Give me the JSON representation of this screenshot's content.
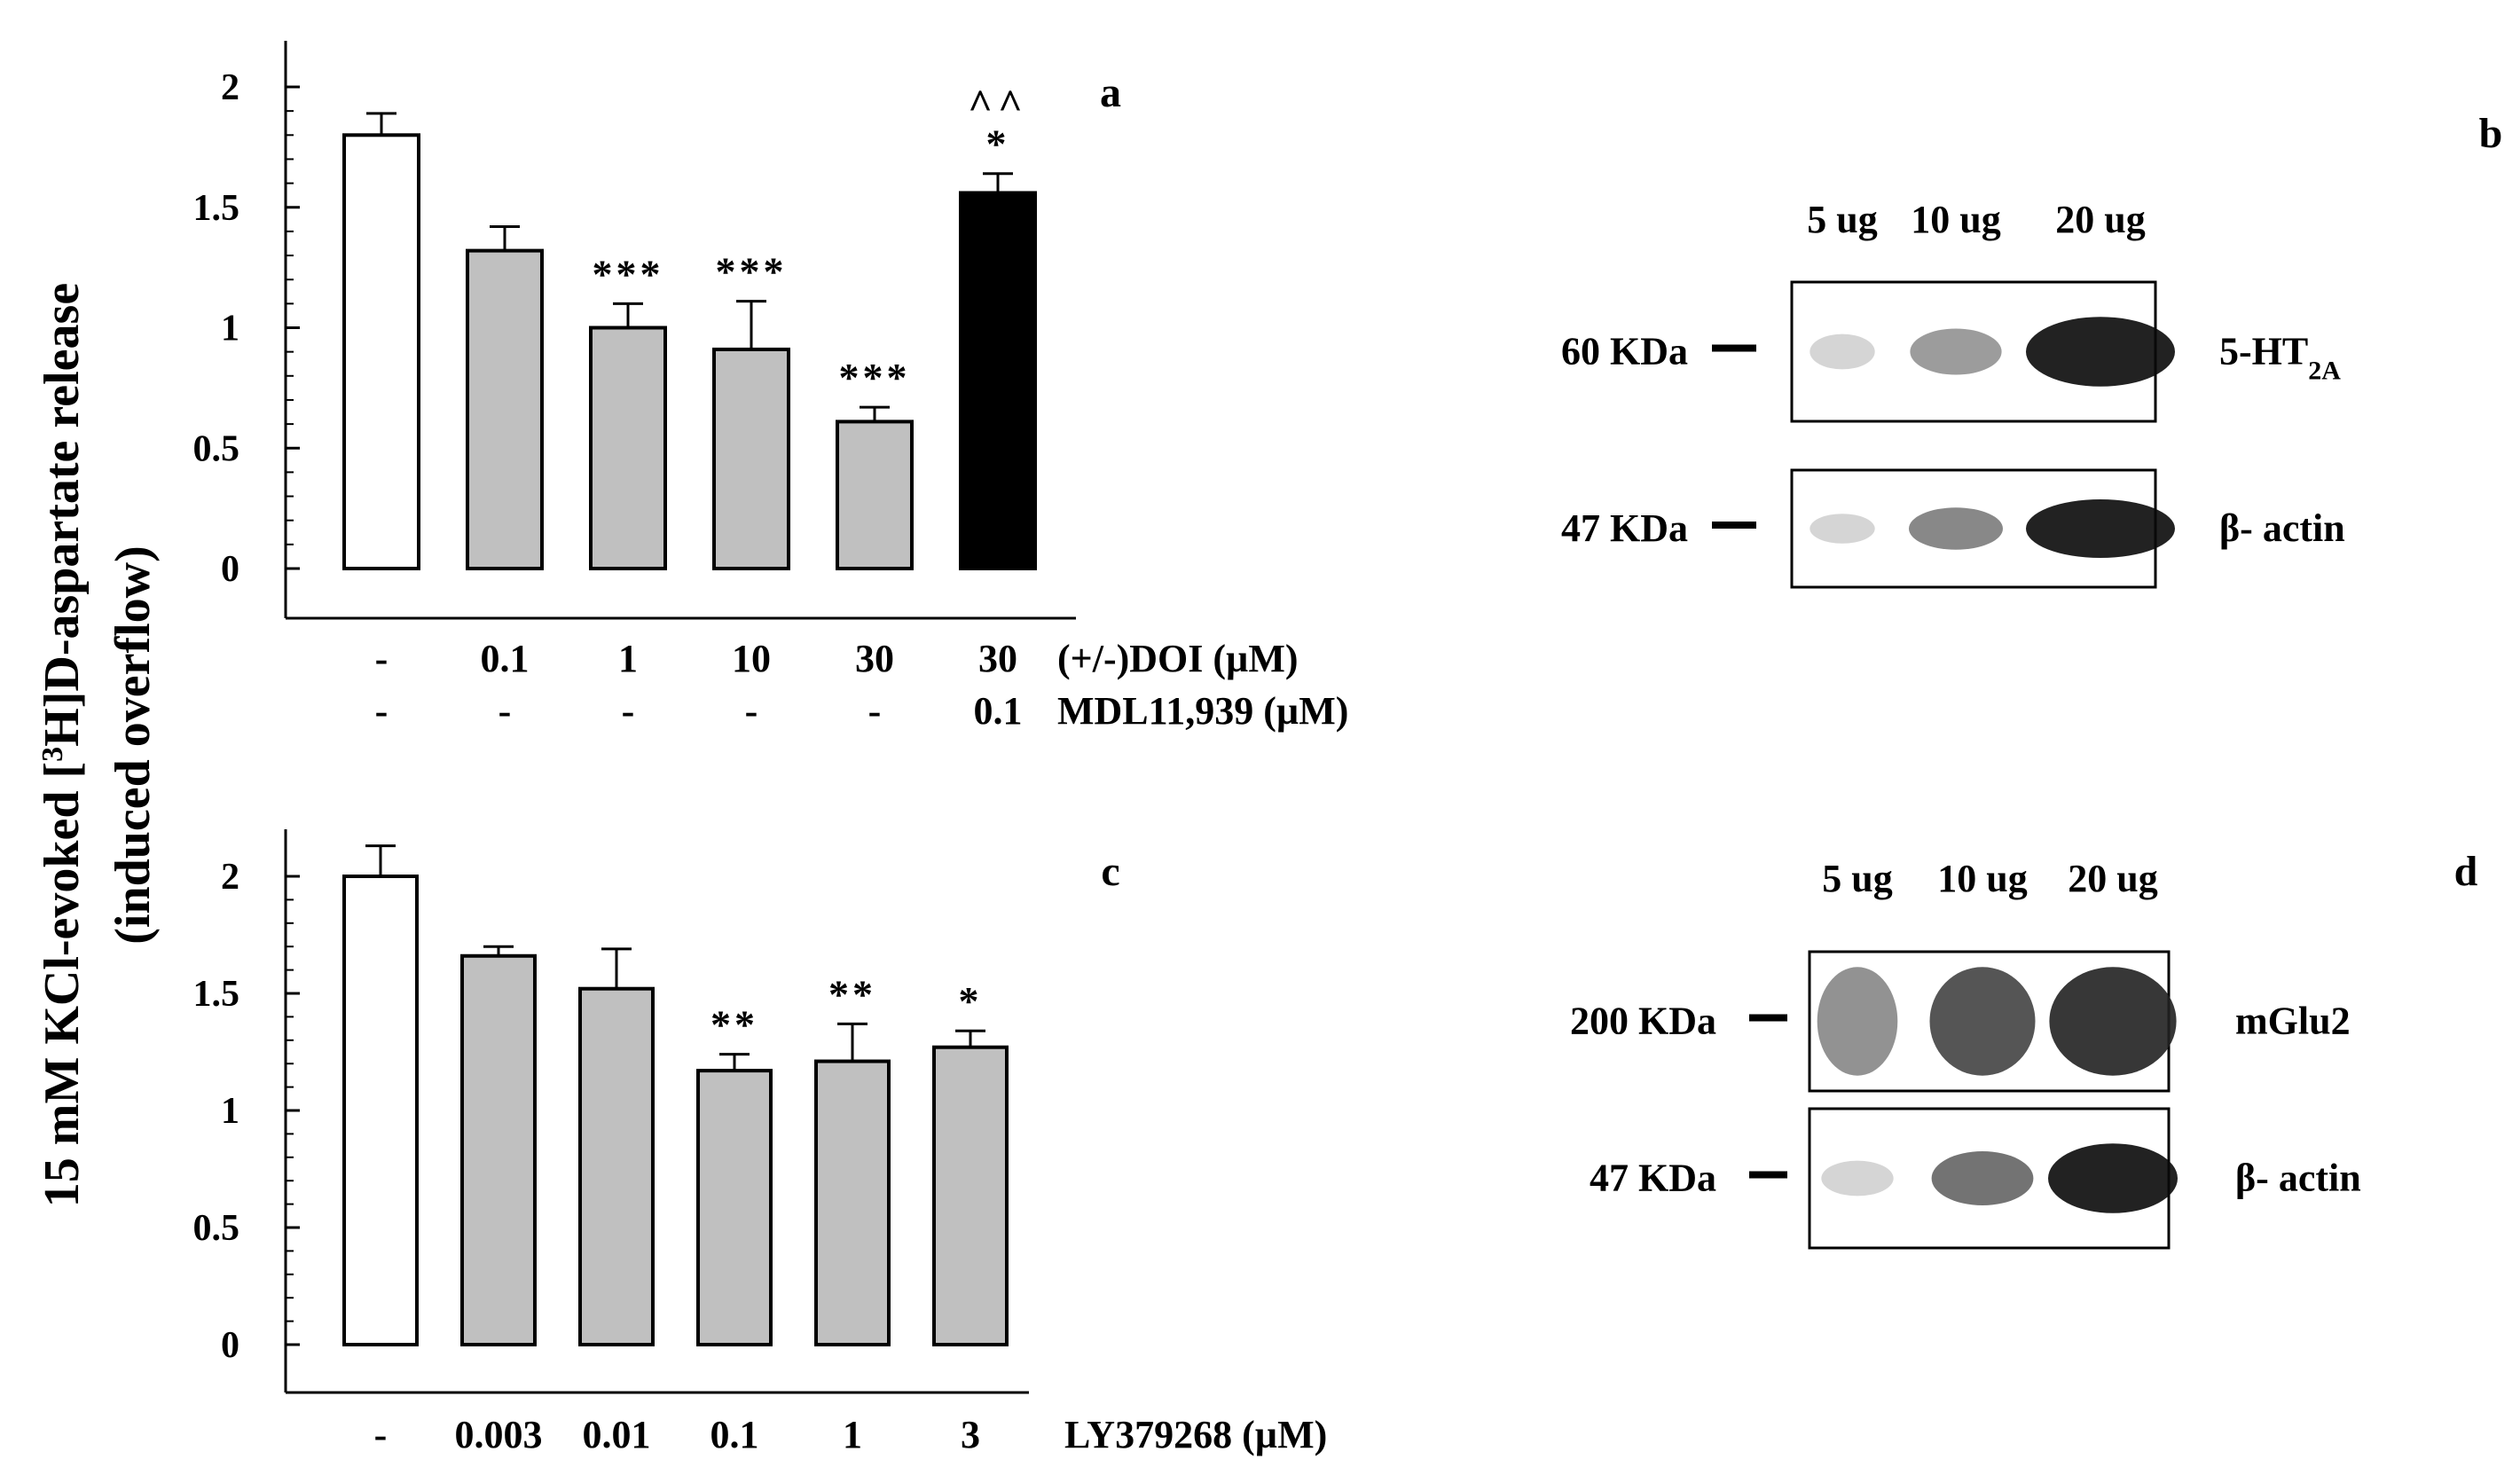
{
  "y_axis_label": {
    "line1_pre": "15 mM KCl-evoked [",
    "line1_sup": "3",
    "line1_post": "H]D-aspartate release",
    "line2": "(induced overflow)"
  },
  "chart_data": [
    {
      "type": "bar",
      "panel": "a",
      "ylim": [
        0,
        2
      ],
      "yticks": [
        "0",
        "0.5",
        "1",
        "1.5",
        "2"
      ],
      "categories": [
        "-",
        "0.1",
        "1",
        "10",
        "30",
        "30"
      ],
      "row2": [
        "-",
        "-",
        "-",
        "-",
        "-",
        "0.1"
      ],
      "row_labels": [
        "(+/-)DOI (µM)",
        "MDL11,939 (µM)"
      ],
      "values": [
        1.8,
        1.32,
        1.0,
        0.91,
        0.61,
        1.56
      ],
      "errors": [
        0.09,
        0.1,
        0.1,
        0.2,
        0.06,
        0.08
      ],
      "fills": [
        "#ffffff",
        "#c0c0c0",
        "#c0c0c0",
        "#c0c0c0",
        "#c0c0c0",
        "#000000"
      ],
      "significance": [
        "",
        "",
        "***",
        "***",
        "***",
        "*"
      ],
      "significance2": [
        "",
        "",
        "",
        "",
        "",
        "^^"
      ],
      "grid": false
    },
    {
      "type": "bar",
      "panel": "c",
      "ylim": [
        0,
        2
      ],
      "yticks": [
        "0",
        "0.5",
        "1",
        "1.5",
        "2"
      ],
      "categories": [
        "-",
        "0.003",
        "0.01",
        "0.1",
        "1",
        "3"
      ],
      "row_labels": [
        "LY379268 (µM)"
      ],
      "values": [
        2.0,
        1.66,
        1.52,
        1.17,
        1.21,
        1.27
      ],
      "errors": [
        0.13,
        0.04,
        0.17,
        0.07,
        0.16,
        0.07
      ],
      "fills": [
        "#ffffff",
        "#c0c0c0",
        "#c0c0c0",
        "#c0c0c0",
        "#c0c0c0",
        "#c0c0c0"
      ],
      "significance": [
        "",
        "",
        "",
        "**",
        "**",
        "*"
      ],
      "grid": false
    }
  ],
  "blots": [
    {
      "panel": "b",
      "lanes": [
        "5 ug",
        "10 ug",
        "20 ug"
      ],
      "rows": [
        {
          "kda": "60 KDa",
          "protein": "5-HT",
          "protein_sub": "2A",
          "intensity": [
            0.12,
            0.4,
            1.0
          ]
        },
        {
          "kda": "47 KDa",
          "protein": "β- actin",
          "protein_sub": "",
          "intensity": [
            0.12,
            0.5,
            1.0
          ]
        }
      ]
    },
    {
      "panel": "d",
      "lanes": [
        "5 ug",
        "10 ug",
        "20 ug"
      ],
      "rows": [
        {
          "kda": "200 KDa",
          "protein": "mGlu2",
          "protein_sub": "",
          "intensity": [
            0.45,
            0.75,
            0.9
          ]
        },
        {
          "kda": "47 KDa",
          "protein": "β- actin",
          "protein_sub": "",
          "intensity": [
            0.12,
            0.6,
            1.0
          ]
        }
      ]
    }
  ]
}
